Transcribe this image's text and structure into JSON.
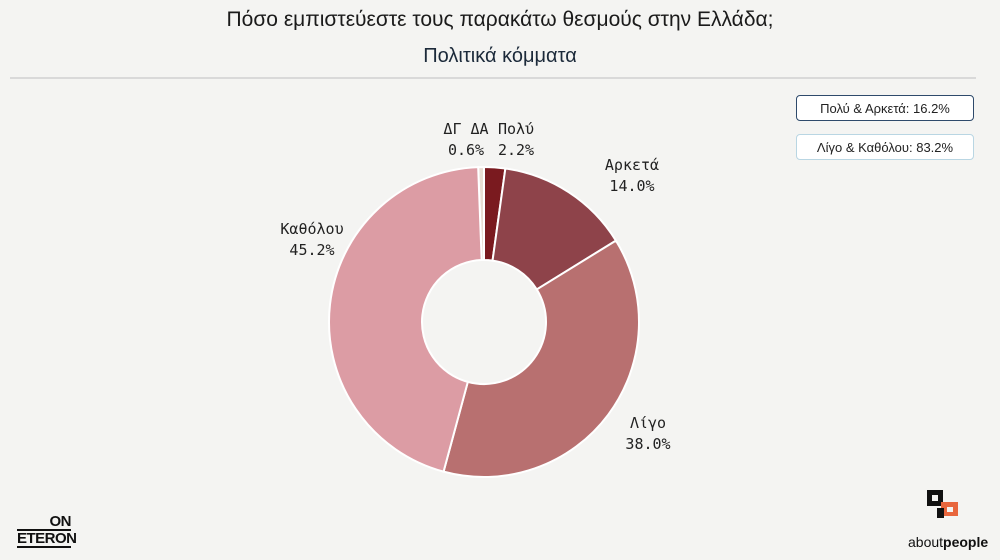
{
  "header": {
    "title": "Πόσο εμπιστεύεστε τους παρακάτω θεσμούς στην Ελλάδα;",
    "subtitle": "Πολιτικά κόμματα"
  },
  "summary": {
    "box1": "Πολύ & Αρκετά: 16.2%",
    "box2": "Λίγο & Καθόλου: 83.2%"
  },
  "chart_data": {
    "type": "pie",
    "donut": true,
    "title": "Πολιτικά κόμματα",
    "slices": [
      {
        "label": "Πολύ",
        "value": 2.2,
        "display": "2.2%",
        "color": "#7a1a1f"
      },
      {
        "label": "Αρκετά",
        "value": 14.0,
        "display": "14.0%",
        "color": "#8e434a"
      },
      {
        "label": "Λίγο",
        "value": 38.0,
        "display": "38.0%",
        "color": "#b87070"
      },
      {
        "label": "Καθόλου",
        "value": 45.2,
        "display": "45.2%",
        "color": "#dc9ca4"
      },
      {
        "label": "ΔΓ ΔΑ",
        "value": 0.6,
        "display": "0.6%",
        "color": "#e8ddd3"
      }
    ]
  },
  "branding": {
    "left_logo_line1": "ON",
    "left_logo_line2": "ETERON",
    "right_logo_part1": "about",
    "right_logo_part2": "people"
  }
}
